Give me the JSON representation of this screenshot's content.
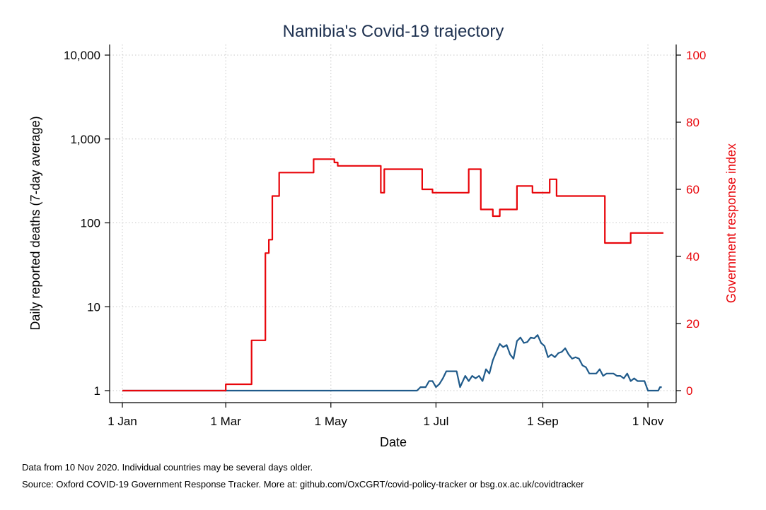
{
  "chart_data": {
    "type": "line",
    "title": "Namibia's Covid-19 trajectory",
    "xlabel": "Date",
    "ylabel_left": "Daily reported deaths (7-day average)",
    "ylabel_right": "Government response index",
    "y_left_scale": "log",
    "y_left_range": [
      1,
      10000
    ],
    "y_left_ticks": [
      1,
      10,
      100,
      1000,
      10000
    ],
    "y_left_tick_labels": [
      "1",
      "10",
      "100",
      "1,000",
      "10,000"
    ],
    "y_right_range": [
      0,
      100
    ],
    "y_right_ticks": [
      0,
      20,
      40,
      60,
      80,
      100
    ],
    "y_right_tick_labels": [
      "0",
      "20",
      "40",
      "60",
      "80",
      "100"
    ],
    "x_range": [
      "2020-01-01",
      "2020-11-10"
    ],
    "x_ticks": [
      "2020-01-01",
      "2020-03-01",
      "2020-05-01",
      "2020-07-01",
      "2020-09-01",
      "2020-11-01"
    ],
    "x_tick_labels": [
      "1 Jan",
      "1 Mar",
      "1 May",
      "1 Jul",
      "1 Sep",
      "1 Nov"
    ],
    "grid": true,
    "colors": {
      "deaths": "#1f5a8a",
      "response": "#e8060b",
      "title": "#1e3150"
    },
    "series": [
      {
        "key": "deaths",
        "axis": "left",
        "x": [
          "2020-01-01",
          "2020-06-20",
          "2020-06-22",
          "2020-06-25",
          "2020-06-27",
          "2020-06-29",
          "2020-07-01",
          "2020-07-03",
          "2020-07-05",
          "2020-07-07",
          "2020-07-09",
          "2020-07-11",
          "2020-07-13",
          "2020-07-15",
          "2020-07-18",
          "2020-07-20",
          "2020-07-22",
          "2020-07-24",
          "2020-07-26",
          "2020-07-28",
          "2020-07-30",
          "2020-08-01",
          "2020-08-03",
          "2020-08-05",
          "2020-08-07",
          "2020-08-09",
          "2020-08-11",
          "2020-08-13",
          "2020-08-15",
          "2020-08-17",
          "2020-08-19",
          "2020-08-21",
          "2020-08-23",
          "2020-08-25",
          "2020-08-27",
          "2020-08-29",
          "2020-08-31",
          "2020-09-02",
          "2020-09-04",
          "2020-09-06",
          "2020-09-08",
          "2020-09-10",
          "2020-09-12",
          "2020-09-14",
          "2020-09-16",
          "2020-09-18",
          "2020-09-20",
          "2020-09-22",
          "2020-09-24",
          "2020-09-26",
          "2020-09-28",
          "2020-09-30",
          "2020-10-02",
          "2020-10-04",
          "2020-10-06",
          "2020-10-08",
          "2020-10-10",
          "2020-10-12",
          "2020-10-14",
          "2020-10-16",
          "2020-10-18",
          "2020-10-20",
          "2020-10-22",
          "2020-10-24",
          "2020-10-26",
          "2020-10-28",
          "2020-10-30",
          "2020-11-01",
          "2020-11-03",
          "2020-11-05",
          "2020-11-07",
          "2020-11-08",
          "2020-11-09"
        ],
        "values": [
          1,
          1,
          1.1,
          1.1,
          1.3,
          1.3,
          1.1,
          1.2,
          1.4,
          1.7,
          1.7,
          1.7,
          1.7,
          1.1,
          1.5,
          1.3,
          1.5,
          1.4,
          1.5,
          1.3,
          1.8,
          1.6,
          2.3,
          2.9,
          3.6,
          3.3,
          3.5,
          2.7,
          2.4,
          3.9,
          4.3,
          3.7,
          3.8,
          4.3,
          4.2,
          4.6,
          3.7,
          3.4,
          2.5,
          2.7,
          2.5,
          2.8,
          2.9,
          3.2,
          2.7,
          2.4,
          2.5,
          2.4,
          2.0,
          1.9,
          1.6,
          1.6,
          1.6,
          1.8,
          1.5,
          1.6,
          1.6,
          1.6,
          1.5,
          1.5,
          1.4,
          1.6,
          1.3,
          1.4,
          1.3,
          1.3,
          1.3,
          1.0,
          1.0,
          1.0,
          1.0,
          1.1,
          1.1
        ]
      },
      {
        "key": "response",
        "axis": "right",
        "step": true,
        "x": [
          "2020-01-01",
          "2020-03-01",
          "2020-03-14",
          "2020-03-16",
          "2020-03-17",
          "2020-03-24",
          "2020-03-25",
          "2020-03-26",
          "2020-03-27",
          "2020-03-28",
          "2020-03-31",
          "2020-04-01",
          "2020-04-05",
          "2020-04-07",
          "2020-04-09",
          "2020-04-11",
          "2020-04-13",
          "2020-04-15",
          "2020-04-17",
          "2020-04-19",
          "2020-04-21",
          "2020-04-23",
          "2020-04-25",
          "2020-04-27",
          "2020-04-29",
          "2020-05-01",
          "2020-05-03",
          "2020-05-05",
          "2020-05-07",
          "2020-05-09",
          "2020-05-13",
          "2020-05-17",
          "2020-05-21",
          "2020-05-25",
          "2020-05-28",
          "2020-05-30",
          "2020-06-01",
          "2020-06-03",
          "2020-06-07",
          "2020-06-11",
          "2020-06-15",
          "2020-06-19",
          "2020-06-23",
          "2020-06-25",
          "2020-06-29",
          "2020-07-03",
          "2020-07-07",
          "2020-07-13",
          "2020-07-14",
          "2020-07-20",
          "2020-07-21",
          "2020-07-25",
          "2020-07-27",
          "2020-08-01",
          "2020-08-03",
          "2020-08-07",
          "2020-08-11",
          "2020-08-13",
          "2020-08-17",
          "2020-08-22",
          "2020-08-26",
          "2020-08-28",
          "2020-09-01",
          "2020-09-03",
          "2020-09-05",
          "2020-09-09",
          "2020-09-13",
          "2020-09-21",
          "2020-09-25",
          "2020-09-30",
          "2020-10-01",
          "2020-10-03",
          "2020-10-07",
          "2020-10-11",
          "2020-10-15",
          "2020-10-18",
          "2020-10-19",
          "2020-10-22",
          "2020-10-26",
          "2020-11-01",
          "2020-11-09"
        ],
        "values": [
          0,
          1.9,
          1.9,
          15,
          15,
          41,
          41,
          45,
          45,
          58,
          58,
          65,
          65,
          65,
          65,
          65,
          65,
          65,
          65,
          65,
          69,
          69,
          69,
          69,
          69,
          69,
          68,
          67,
          67,
          67,
          67,
          67,
          67,
          67,
          67,
          59,
          66,
          66,
          66,
          66,
          66,
          66,
          60,
          60,
          59,
          59,
          59,
          59,
          59,
          66,
          66,
          66,
          54,
          54,
          52,
          54,
          54,
          54,
          61,
          61,
          59,
          59,
          59,
          59,
          63,
          58,
          58,
          58,
          58,
          58,
          58,
          58,
          44,
          44,
          44,
          44,
          44,
          47,
          47,
          47,
          47
        ]
      }
    ],
    "notes": [
      "Data from 10 Nov 2020. Individual countries may be several days older.",
      "Source: Oxford COVID-19 Government Response Tracker. More at: github.com/OxCGRT/covid-policy-tracker or bsg.ox.ac.uk/covidtracker"
    ]
  }
}
